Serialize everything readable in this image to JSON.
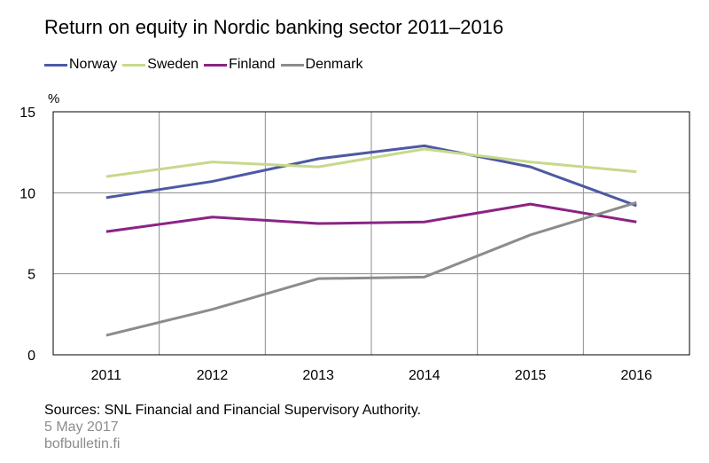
{
  "chart_data": {
    "type": "line",
    "title": "Return on equity in Nordic banking sector 2011–2016",
    "unit_label": "%",
    "categories": [
      "2011",
      "2012",
      "2013",
      "2014",
      "2015",
      "2016"
    ],
    "ylim": [
      0,
      15
    ],
    "yticks": [
      0,
      5,
      10,
      15
    ],
    "grid": true,
    "legend_position": "top-left",
    "series": [
      {
        "name": "Norway",
        "color": "#4e59a4",
        "values": [
          9.7,
          10.7,
          12.1,
          12.9,
          11.6,
          9.2
        ]
      },
      {
        "name": "Sweden",
        "color": "#c6d98b",
        "values": [
          11.0,
          11.9,
          11.6,
          12.7,
          11.9,
          11.3
        ]
      },
      {
        "name": "Finland",
        "color": "#8a2484",
        "values": [
          7.6,
          8.5,
          8.1,
          8.2,
          9.3,
          8.2
        ]
      },
      {
        "name": "Denmark",
        "color": "#8c8c8c",
        "values": [
          1.2,
          2.8,
          4.7,
          4.8,
          7.4,
          9.4
        ]
      }
    ]
  },
  "footer": {
    "source": "Sources: SNL Financial and Financial Supervisory Authority.",
    "date": "5 May 2017",
    "site": "bofbulletin.fi"
  }
}
